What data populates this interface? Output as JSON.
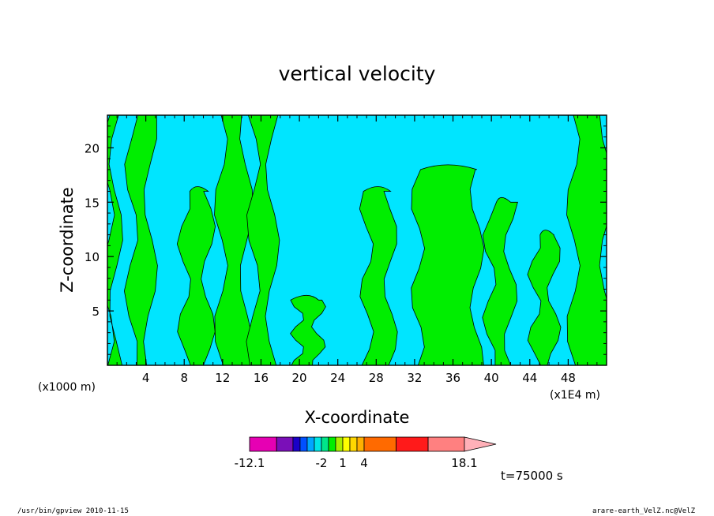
{
  "chart_data": {
    "type": "heatmap",
    "title": "vertical velocity",
    "xlabel": "X-coordinate",
    "ylabel": "Z-coordinate",
    "x_unit_left": "(x1000 m)",
    "x_unit_right": "(x1E4 m)",
    "xlim": [
      0,
      52
    ],
    "ylim": [
      0,
      23
    ],
    "x_ticks": [
      4,
      8,
      12,
      16,
      20,
      24,
      28,
      32,
      36,
      40,
      44,
      48
    ],
    "y_ticks": [
      5,
      10,
      15,
      20
    ],
    "colors": {
      "negative": "#00e5ff",
      "positive": "#00ee00",
      "frame": "#000000"
    },
    "colorbar": {
      "min_label": "-12.1",
      "max_label": "18.1",
      "labels": [
        {
          "text": "-12.1",
          "value": -12.1
        },
        {
          "text": "-2",
          "value": -2
        },
        {
          "text": "1",
          "value": 1
        },
        {
          "text": "4",
          "value": 4
        },
        {
          "text": "18.1",
          "value": 18.1
        }
      ],
      "segments": [
        {
          "from": -12.1,
          "to": -8.3,
          "color": "#e600b3"
        },
        {
          "from": -8.3,
          "to": -6.0,
          "color": "#7a0fb8"
        },
        {
          "from": -6.0,
          "to": -5.0,
          "color": "#1a00c8"
        },
        {
          "from": -5.0,
          "to": -4.0,
          "color": "#0050ff"
        },
        {
          "from": -4.0,
          "to": -3.0,
          "color": "#00a6ff"
        },
        {
          "from": -3.0,
          "to": -2.0,
          "color": "#00e5e5"
        },
        {
          "from": -2.0,
          "to": -1.0,
          "color": "#00e68a"
        },
        {
          "from": -1.0,
          "to": 0.0,
          "color": "#00ee00"
        },
        {
          "from": 0.0,
          "to": 1.0,
          "color": "#aaee00"
        },
        {
          "from": 1.0,
          "to": 2.0,
          "color": "#ffff00"
        },
        {
          "from": 2.0,
          "to": 3.0,
          "color": "#ffd700"
        },
        {
          "from": 3.0,
          "to": 4.0,
          "color": "#ffb000"
        },
        {
          "from": 4.0,
          "to": 8.5,
          "color": "#ff6a00"
        },
        {
          "from": 8.5,
          "to": 13.0,
          "color": "#ff1a1a"
        },
        {
          "from": 13.0,
          "to": 18.1,
          "color": "#ff8080"
        }
      ],
      "overflow_color": "#ffb0b8"
    },
    "bands": [
      {
        "sign": "positive",
        "x": [
          0.0,
          0.9
        ],
        "z_top": 23
      },
      {
        "sign": "positive",
        "x": [
          2.5,
          4.5
        ],
        "z_top": 23
      },
      {
        "sign": "positive",
        "x": [
          8.0,
          10.5
        ],
        "z_top": 16
      },
      {
        "sign": "positive",
        "x": [
          11.8,
          14.5
        ],
        "z_top": 23
      },
      {
        "sign": "positive",
        "x": [
          15.2,
          17.2
        ],
        "z_top": 23
      },
      {
        "sign": "positive",
        "x": [
          19.8,
          22.0
        ],
        "z_top": 6
      },
      {
        "sign": "positive",
        "x": [
          27.0,
          29.5
        ],
        "z_top": 16
      },
      {
        "sign": "positive",
        "x": [
          32.3,
          38.5
        ],
        "z_top": 18
      },
      {
        "sign": "positive",
        "x": [
          39.8,
          42.0
        ],
        "z_top": 15
      },
      {
        "sign": "positive",
        "x": [
          44.5,
          46.5
        ],
        "z_top": 12
      },
      {
        "sign": "positive",
        "x": [
          48.5,
          52.0
        ],
        "z_top": 23
      }
    ]
  },
  "footer": {
    "time": "t=75000 s",
    "program": "/usr/bin/gpview   2010-11-15",
    "file": "arare-earth_VelZ.nc@VelZ"
  }
}
